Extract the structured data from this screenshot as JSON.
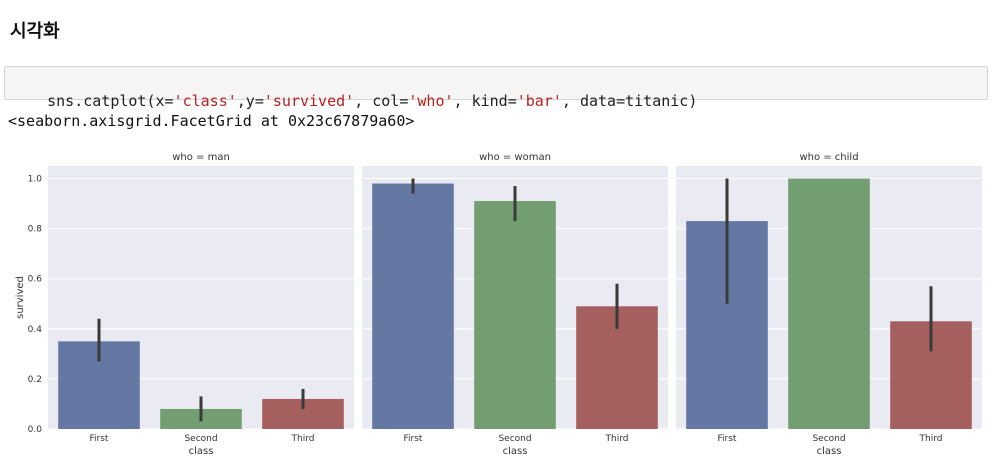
{
  "heading": "시각화",
  "code_cell": {
    "parts": [
      {
        "text": "sns.catplot(x=",
        "kind": "plain"
      },
      {
        "text": "'class'",
        "kind": "string"
      },
      {
        "text": ",y=",
        "kind": "plain"
      },
      {
        "text": "'survived'",
        "kind": "string"
      },
      {
        "text": ", col=",
        "kind": "plain"
      },
      {
        "text": "'who'",
        "kind": "string"
      },
      {
        "text": ", kind=",
        "kind": "plain"
      },
      {
        "text": "'bar'",
        "kind": "string"
      },
      {
        "text": ", data=titanic)",
        "kind": "plain"
      }
    ]
  },
  "output_text": "<seaborn.axisgrid.FacetGrid at 0x23c67879a60>",
  "chart_data": {
    "type": "bar",
    "ylabel": "survived",
    "xlabel": "class",
    "ylim": [
      0,
      1.05
    ],
    "yticks": [
      0.0,
      0.2,
      0.4,
      0.6,
      0.8,
      1.0
    ],
    "ytick_labels": [
      "0.0",
      "0.2",
      "0.4",
      "0.6",
      "0.8",
      "1.0"
    ],
    "categories": [
      "First",
      "Second",
      "Third"
    ],
    "colors": [
      "#6577a3",
      "#739e72",
      "#a55f5f"
    ],
    "errorbar_color": "#3a3a3a",
    "background": "#eaeaf2",
    "grid": true,
    "facets": [
      {
        "title": "who = man",
        "values": [
          0.35,
          0.08,
          0.12
        ],
        "ci": [
          [
            0.27,
            0.44
          ],
          [
            0.03,
            0.13
          ],
          [
            0.08,
            0.16
          ]
        ]
      },
      {
        "title": "who = woman",
        "values": [
          0.98,
          0.91,
          0.49
        ],
        "ci": [
          [
            0.94,
            1.0
          ],
          [
            0.83,
            0.97
          ],
          [
            0.4,
            0.58
          ]
        ]
      },
      {
        "title": "who = child",
        "values": [
          0.83,
          1.0,
          0.43
        ],
        "ci": [
          [
            0.5,
            1.0
          ],
          [
            1.0,
            1.0
          ],
          [
            0.31,
            0.57
          ]
        ]
      }
    ]
  }
}
